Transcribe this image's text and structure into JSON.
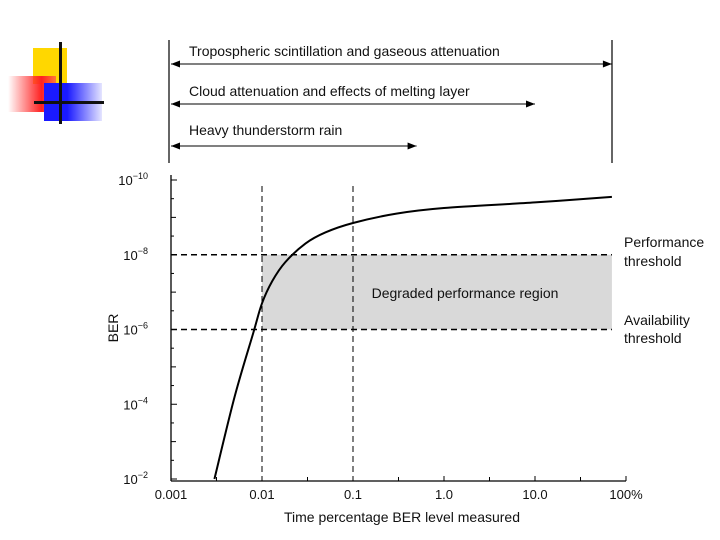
{
  "chart_data": {
    "type": "line",
    "x_scale": "log",
    "xlabel": "Time percentage BER level measured",
    "ylabel": "BER",
    "x_ticks": [
      {
        "value": 0.001,
        "label": "0.001"
      },
      {
        "value": 0.01,
        "label": "0.01"
      },
      {
        "value": 0.1,
        "label": "0.1"
      },
      {
        "value": 1,
        "label": "1.0"
      },
      {
        "value": 10,
        "label": "10.0"
      },
      {
        "value": 100,
        "label": "100%"
      }
    ],
    "y_ticks": [
      {
        "exponent": -10,
        "base": "10",
        "sup": "−10"
      },
      {
        "exponent": -8,
        "base": "10",
        "sup": "−8"
      },
      {
        "exponent": -6,
        "base": "10",
        "sup": "−6"
      },
      {
        "exponent": -4,
        "base": "10",
        "sup": "−4"
      },
      {
        "exponent": -2,
        "base": "10",
        "sup": "−2"
      }
    ],
    "ylim_exponent": [
      -10,
      -2
    ],
    "xlim": [
      0.001,
      100
    ],
    "series": [
      {
        "name": "BER curve",
        "points": [
          {
            "x": 0.003,
            "y_exponent": -2.0
          },
          {
            "x": 0.005,
            "y_exponent": -4.2
          },
          {
            "x": 0.008,
            "y_exponent": -5.9
          },
          {
            "x": 0.01,
            "y_exponent": -6.7
          },
          {
            "x": 0.013,
            "y_exponent": -7.3
          },
          {
            "x": 0.018,
            "y_exponent": -7.8
          },
          {
            "x": 0.03,
            "y_exponent": -8.3
          },
          {
            "x": 0.05,
            "y_exponent": -8.6
          },
          {
            "x": 0.1,
            "y_exponent": -8.85
          },
          {
            "x": 0.3,
            "y_exponent": -9.1
          },
          {
            "x": 1,
            "y_exponent": -9.25
          },
          {
            "x": 10,
            "y_exponent": -9.4
          },
          {
            "x": 70,
            "y_exponent": -9.55
          }
        ]
      }
    ],
    "thresholds": [
      {
        "label_line1": "Performance",
        "label_line2": "threshold",
        "y_exponent": -8
      },
      {
        "label_line1": "Availability",
        "label_line2": "threshold",
        "y_exponent": -6
      }
    ],
    "region": {
      "label": "Degraded performance region",
      "x_from": 0.01,
      "x_to": 70,
      "y_from_exponent": -8,
      "y_to_exponent": -6
    },
    "vertical_markers": [
      0.01,
      0.1
    ],
    "annotations": [
      {
        "text": "Tropospheric scintillation and gaseous attenuation",
        "x_end": 70
      },
      {
        "text": "Cloud attenuation and effects of melting layer",
        "x_end": 10
      },
      {
        "text": "Heavy thunderstorm rain",
        "x_end": 0.5
      }
    ],
    "colors": {
      "region_fill": "#d9d9d9",
      "line": "#000000"
    }
  },
  "decoration": {
    "colors": {
      "yellow": "#ffd700",
      "red": "#ff2020",
      "blue": "#1a1aff"
    }
  }
}
